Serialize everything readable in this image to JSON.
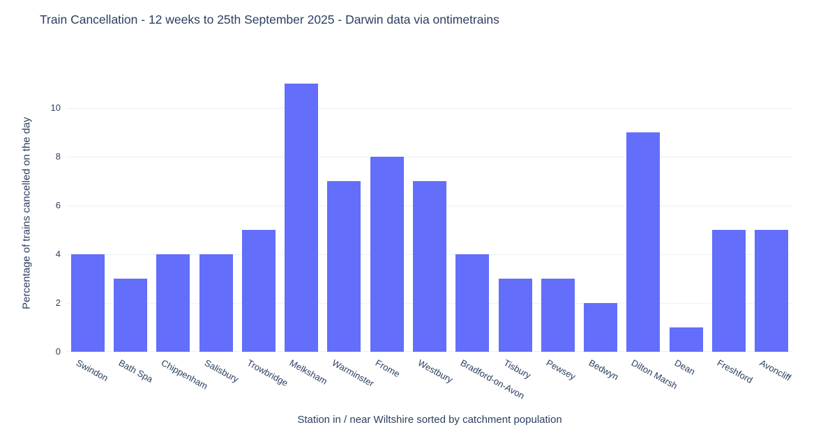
{
  "chart_data": {
    "type": "bar",
    "title": "Train Cancellation - 12 weeks to 25th September 2025 - Darwin data via ontimetrains",
    "categories": [
      "Swindon",
      "Bath Spa",
      "Chippenham",
      "Salisbury",
      "Trowbridge",
      "Melksham",
      "Warminster",
      "Frome",
      "Westbury",
      "Bradford-on-Avon",
      "Tisbury",
      "Pewsey",
      "Bedwyn",
      "Dilton Marsh",
      "Dean",
      "Freshford",
      "Avoncliff"
    ],
    "values": [
      4,
      3,
      4,
      4,
      5,
      11,
      7,
      8,
      7,
      4,
      3,
      3,
      2,
      9,
      1,
      5,
      5
    ],
    "xlabel": "Station in / near Wiltshire sorted by catchment population",
    "ylabel": "Percentage of trains cancelled on the day",
    "yticks": [
      0,
      2,
      4,
      6,
      8,
      10
    ],
    "ylim": [
      0,
      11.35
    ],
    "grid": true,
    "legend": false,
    "tick_angle_deg": 29,
    "bar_color": "#636EFA",
    "text_color": "#2a3f5f",
    "grid_color": "#EBF0F8",
    "background_color": "#ffffff"
  }
}
